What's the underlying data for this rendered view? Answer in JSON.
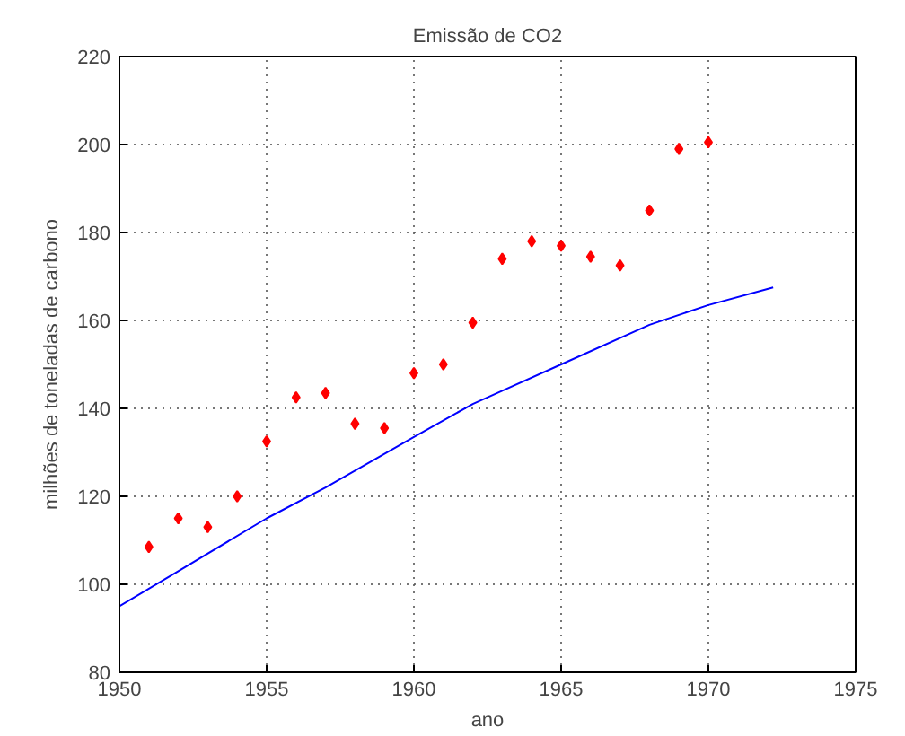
{
  "chart_data": {
    "type": "scatter",
    "title": "Emissão de CO2",
    "xlabel": "ano",
    "ylabel": "milhões de toneladas de carbono",
    "xlim": [
      1950,
      1975
    ],
    "xticks": [
      1950,
      1955,
      1960,
      1965,
      1970,
      1975
    ],
    "ylim": [
      80,
      220
    ],
    "yticks": [
      80,
      100,
      120,
      140,
      160,
      180,
      200,
      220
    ],
    "grid": true,
    "series": [
      {
        "marker": "diamond",
        "color": "#ff0000",
        "x": [
          1951,
          1952,
          1953,
          1954,
          1955,
          1956,
          1957,
          1958,
          1959,
          1960,
          1961,
          1962,
          1963,
          1964,
          1965,
          1966,
          1967,
          1968,
          1969,
          1970
        ],
        "values": [
          108.5,
          115,
          113,
          120,
          132.5,
          142.5,
          143.5,
          136.5,
          135.5,
          148,
          150,
          159.5,
          174,
          178,
          177,
          174.5,
          172.5,
          185,
          199,
          200.5
        ]
      },
      {
        "type": "line",
        "color": "#0000ff",
        "x": [
          1950,
          1952,
          1955,
          1957,
          1960,
          1962,
          1963,
          1965,
          1968,
          1970,
          1972.2
        ],
        "values": [
          95,
          103,
          115,
          122,
          133.5,
          141,
          144,
          150,
          159,
          163.5,
          167.5
        ]
      }
    ]
  }
}
